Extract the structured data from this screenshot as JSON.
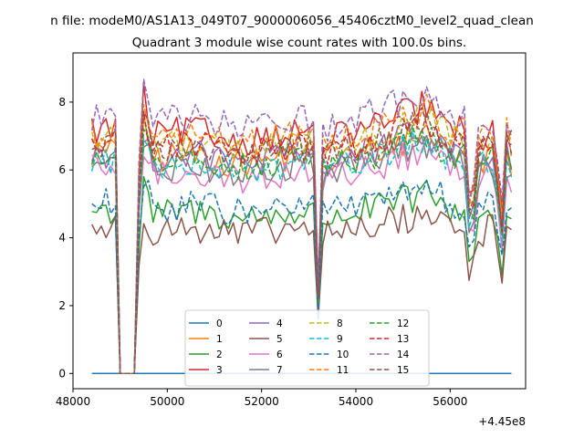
{
  "chart_data": {
    "type": "line",
    "suptitle": "n file: modeM0/AS1A13_049T07_9000006056_45406cztM0_level2_quad_clean",
    "title": "Quadrant 3 module wise count rates with 100.0s bins.",
    "xlabel": "",
    "ylabel": "",
    "x_offset_label": "+4.45e8",
    "xlim": [
      48000,
      57600
    ],
    "ylim": [
      -0.45,
      9.45
    ],
    "xticks": [
      48000,
      50000,
      52000,
      54000,
      56000
    ],
    "xtick_labels": [
      "48000",
      "50000",
      "52000",
      "54000",
      "56000"
    ],
    "yticks": [
      0,
      2,
      4,
      6,
      8
    ],
    "ytick_labels": [
      "0",
      "2",
      "4",
      "6",
      "8"
    ],
    "grid": false,
    "legend_position": "lower-center",
    "series": [
      {
        "name": "0",
        "color": "#1f77b4",
        "dash": "solid",
        "base": 0.0
      },
      {
        "name": "1",
        "color": "#ff7f0e",
        "dash": "solid",
        "base": 6.5
      },
      {
        "name": "2",
        "color": "#2ca02c",
        "dash": "solid",
        "base": 4.8
      },
      {
        "name": "3",
        "color": "#d62728",
        "dash": "solid",
        "base": 7.2
      },
      {
        "name": "4",
        "color": "#9467bd",
        "dash": "solid",
        "base": 6.5
      },
      {
        "name": "5",
        "color": "#8c564b",
        "dash": "solid",
        "base": 4.3
      },
      {
        "name": "6",
        "color": "#e377c2",
        "dash": "solid",
        "base": 6.0
      },
      {
        "name": "7",
        "color": "#7f7f7f",
        "dash": "solid",
        "base": 6.2
      },
      {
        "name": "8",
        "color": "#bcbd22",
        "dash": "dashed",
        "base": 6.9
      },
      {
        "name": "9",
        "color": "#17becf",
        "dash": "dashed",
        "base": 6.3
      },
      {
        "name": "10",
        "color": "#1f77b4",
        "dash": "dashed",
        "base": 5.0
      },
      {
        "name": "11",
        "color": "#ff7f0e",
        "dash": "dashed",
        "base": 7.1
      },
      {
        "name": "12",
        "color": "#2ca02c",
        "dash": "dashed",
        "base": 6.4
      },
      {
        "name": "13",
        "color": "#d62728",
        "dash": "dashed",
        "base": 6.8
      },
      {
        "name": "14",
        "color": "#9467bd",
        "dash": "dashed",
        "base": 7.6
      },
      {
        "name": "15",
        "color": "#8c564b",
        "dash": "dashed",
        "base": 6.7
      }
    ],
    "x_start": 48400,
    "x_end": 57350,
    "x_step": 100,
    "profile_knots": [
      [
        48400,
        1.0
      ],
      [
        48800,
        1.0
      ],
      [
        48900,
        1.0
      ],
      [
        48950,
        0.2
      ],
      [
        49000,
        0.0
      ],
      [
        49300,
        0.0
      ],
      [
        49400,
        0.8
      ],
      [
        49500,
        1.12
      ],
      [
        49700,
        0.97
      ],
      [
        50500,
        1.0
      ],
      [
        51500,
        0.95
      ],
      [
        52500,
        0.98
      ],
      [
        53100,
        1.0
      ],
      [
        53200,
        0.35
      ],
      [
        53300,
        0.95
      ],
      [
        54500,
        1.02
      ],
      [
        55500,
        1.1
      ],
      [
        56000,
        1.0
      ],
      [
        56300,
        1.0
      ],
      [
        56450,
        0.55
      ],
      [
        56550,
        0.95
      ],
      [
        56900,
        1.0
      ],
      [
        57100,
        0.65
      ],
      [
        57200,
        1.0
      ],
      [
        57300,
        0.95
      ],
      [
        57350,
        0.08
      ]
    ]
  }
}
